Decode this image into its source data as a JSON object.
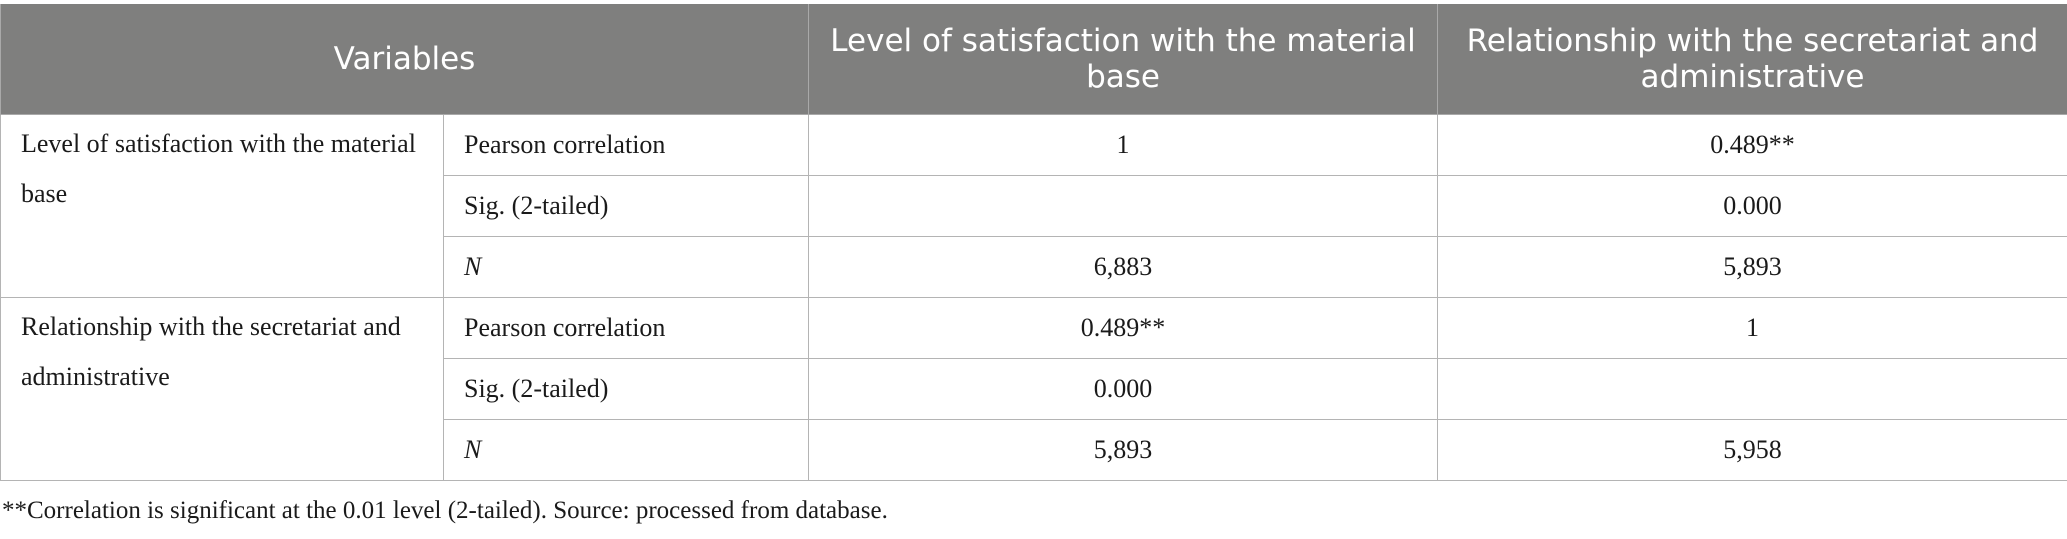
{
  "header": {
    "variables": "Variables",
    "col1": "Level of satisfaction with the material base",
    "col2": "Relationship with the secretariat and administrative"
  },
  "groups": [
    {
      "variable": "Level of satisfaction with the material base",
      "rows": [
        {
          "stat": "Pearson correlation",
          "v1": "1",
          "v2": "0.489**"
        },
        {
          "stat": "Sig. (2-tailed)",
          "v1": "",
          "v2": "0.000"
        },
        {
          "stat": "N",
          "v1": "6,883",
          "v2": "5,893"
        }
      ]
    },
    {
      "variable": "Relationship with the secretariat and administrative",
      "rows": [
        {
          "stat": "Pearson correlation",
          "v1": "0.489**",
          "v2": "1"
        },
        {
          "stat": "Sig. (2-tailed)",
          "v1": "0.000",
          "v2": ""
        },
        {
          "stat": "N",
          "v1": "5,893",
          "v2": "5,958"
        }
      ]
    }
  ],
  "footnote": "**Correlation is significant at the 0.01 level (2-tailed). Source: processed from database."
}
